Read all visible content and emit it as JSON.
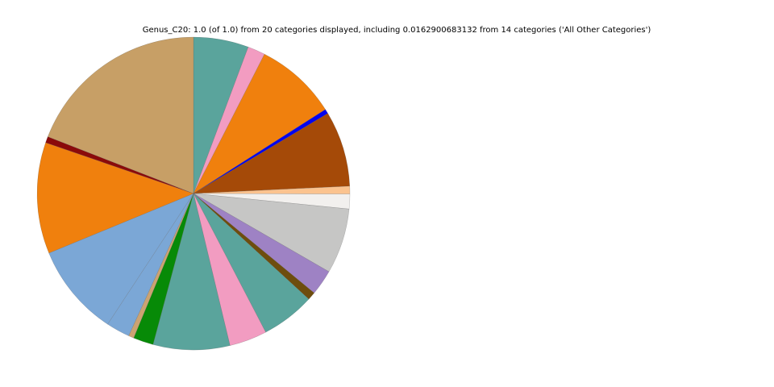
{
  "figure": {
    "background_color": "#ffffff",
    "title": "Genus_C20: 1.0 (of 1.0) from 20 categories displayed, including 0.0162900683132 from 14 categories ('All Other Categories')"
  },
  "chart_data": {
    "type": "pie",
    "title": "Genus_C20: 1.0 (of 1.0) from 20 categories displayed, including 0.0162900683132 from 14 categories ('All Other Categories')",
    "total_fraction_shown": 1.0,
    "categories_displayed": 20,
    "all_other_categories_fraction": 0.0162900683132,
    "all_other_categories_count": 14,
    "legend_position": "none",
    "data_labels": "none",
    "start_angle_deg": 0,
    "direction": "clockwise",
    "slices": [
      {
        "id": "slice-01",
        "color_name": "teal",
        "color": "#5AA49C",
        "fraction": 0.05694
      },
      {
        "id": "slice-02",
        "color_name": "pink",
        "color": "#F29CC1",
        "fraction": 0.01806
      },
      {
        "id": "slice-03",
        "color_name": "orange",
        "color": "#F0800D",
        "fraction": 0.08472
      },
      {
        "id": "slice-04",
        "color_name": "blue",
        "color": "#0404EE",
        "fraction": 0.00472
      },
      {
        "id": "slice-05",
        "color_name": "sienna-brown",
        "color": "#A54A08",
        "fraction": 0.07806
      },
      {
        "id": "slice-06",
        "color_name": "peach",
        "color": "#FBC38F",
        "fraction": 0.00806
      },
      {
        "id": "slice-07",
        "color_name": "off-white",
        "color": "#F2F0EE",
        "fraction": 0.01528
      },
      {
        "id": "slice-08",
        "color_name": "light-gray",
        "color": "#C6C6C5",
        "fraction": 0.0675
      },
      {
        "id": "slice-09",
        "color_name": "purple",
        "color": "#9E82C4",
        "fraction": 0.02639
      },
      {
        "id": "slice-10",
        "color_name": "dark-olive-brown",
        "color": "#6E4D0E",
        "fraction": 0.00833
      },
      {
        "id": "slice-11",
        "color_name": "teal",
        "color": "#5AA49C",
        "fraction": 0.05556
      },
      {
        "id": "slice-12",
        "color_name": "pink",
        "color": "#F29CC1",
        "fraction": 0.03889
      },
      {
        "id": "slice-13",
        "color_name": "teal",
        "color": "#5AA49C",
        "fraction": 0.07917
      },
      {
        "id": "slice-14",
        "color_name": "green",
        "color": "#078A07",
        "fraction": 0.02083
      },
      {
        "id": "slice-15",
        "color_name": "tan",
        "color": "#CBA372",
        "fraction": 0.00556
      },
      {
        "id": "slice-16",
        "color_name": "cornflower-blue",
        "color": "#7BA7D6",
        "fraction": 0.02444
      },
      {
        "id": "slice-17",
        "color_name": "cornflower-blue",
        "color": "#7BA7D6",
        "fraction": 0.09528
      },
      {
        "id": "slice-18",
        "color_name": "orange",
        "color": "#F0800D",
        "fraction": 0.115
      },
      {
        "id": "slice-19",
        "color_name": "dark-red",
        "color": "#8B0A0A",
        "fraction": 0.00639
      },
      {
        "id": "slice-20",
        "color_name": "camel",
        "color": "#C79F66",
        "fraction": 0.19083
      }
    ]
  }
}
